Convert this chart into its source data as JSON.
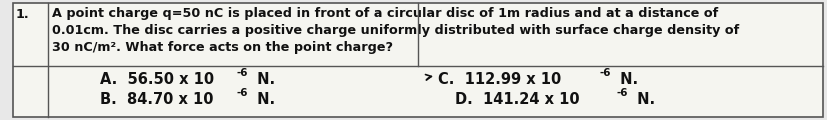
{
  "title_number": "1.",
  "question_line1": "A point charge q=50 nC is placed in front of a circular disc of 1m radius and at a distance of",
  "question_line2": "0.01cm. The disc carries a positive charge uniformly distributed with surface charge density of",
  "question_line3": "30 nC/m². What force acts on the point charge?",
  "opt_A_text": "A.  56.50 x 10",
  "opt_A_sup": "-6",
  "opt_A_end": " N.",
  "opt_B_text": "B.  84.70 x 10",
  "opt_B_sup": "-6",
  "opt_B_end": " N.",
  "opt_C_text": "C.  112.99 x 10",
  "opt_C_sup": "-6",
  "opt_C_end": " N.",
  "opt_D_text": "D.  141.24 x 10",
  "opt_D_sup": "-6",
  "opt_D_end": " N.",
  "bg_color": "#e8e8e8",
  "white_color": "#f5f5f0",
  "border_color": "#555555",
  "text_color": "#111111",
  "font_size_q": 9.2,
  "font_size_opt": 10.5,
  "font_size_sup": 7.5
}
